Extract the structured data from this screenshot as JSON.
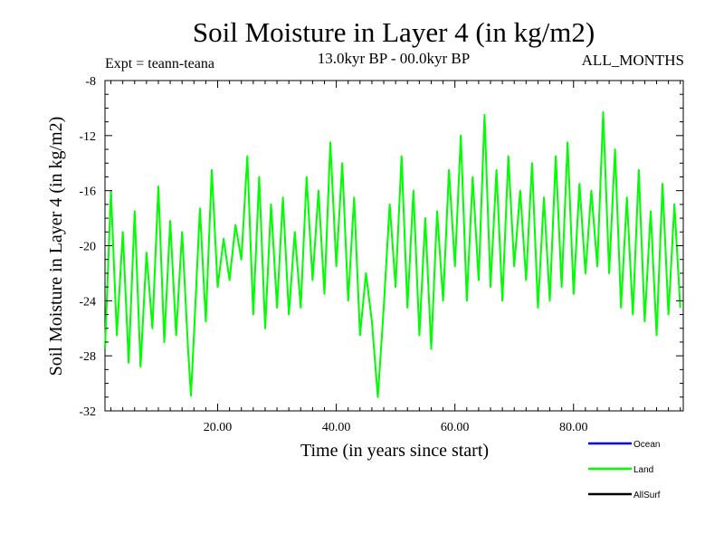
{
  "header": {
    "title": "Soil Moisture in Layer 4 (in kg/m2)",
    "subtitle": "13.0kyr BP - 00.0kyr BP",
    "experiment": "Expt = teann-teana",
    "months": "ALL_MONTHS"
  },
  "chart_data": {
    "type": "line",
    "title": "Soil Moisture in Layer 4 (in kg/m2)",
    "xlabel": "Time (in years since start)",
    "ylabel": "Soil Moisture in Layer 4 (in kg/m2)",
    "xlim": [
      1,
      98.5
    ],
    "ylim": [
      -32,
      -8
    ],
    "xticks": [
      20,
      40,
      60,
      80
    ],
    "xtick_labels": [
      "20.00",
      "40.00",
      "60.00",
      "80.00"
    ],
    "yticks": [
      -8,
      -12,
      -16,
      -20,
      -24,
      -28,
      -32
    ],
    "ytick_labels": [
      "-8",
      "-12",
      "-16",
      "-20",
      "-24",
      "-28",
      "-32"
    ],
    "legend": [
      {
        "name": "Ocean",
        "color": "#0000ff"
      },
      {
        "name": "Land",
        "color": "#00ff00"
      },
      {
        "name": "AllSurf",
        "color": "#000000"
      }
    ],
    "series": [
      {
        "name": "Land",
        "color": "#00ff00",
        "x": [
          1,
          2,
          3,
          4,
          5,
          6,
          7,
          8,
          9,
          10,
          11,
          12,
          13,
          14,
          15,
          15.5,
          16,
          17,
          18,
          19,
          20,
          21,
          22,
          23,
          24,
          25,
          26,
          27,
          28,
          29,
          30,
          31,
          32,
          33,
          34,
          35,
          36,
          37,
          38,
          39,
          40,
          41,
          42,
          43,
          44,
          45,
          46,
          47,
          48,
          49,
          50,
          51,
          52,
          53,
          54,
          55,
          56,
          57,
          58,
          59,
          60,
          61,
          62,
          63,
          64,
          65,
          66,
          67,
          68,
          69,
          70,
          71,
          72,
          73,
          74,
          75,
          76,
          77,
          78,
          79,
          80,
          81,
          82,
          83,
          84,
          85,
          86,
          87,
          88,
          89,
          90,
          91,
          92,
          93,
          94,
          95,
          96,
          97,
          98
        ],
        "values": [
          -27.5,
          -16.0,
          -26.5,
          -19.0,
          -28.5,
          -17.5,
          -28.8,
          -20.5,
          -26.0,
          -15.7,
          -27.0,
          -18.2,
          -26.5,
          -19.0,
          -27.5,
          -30.9,
          -26.5,
          -17.3,
          -25.5,
          -14.5,
          -23.0,
          -19.5,
          -22.5,
          -18.5,
          -21.0,
          -13.5,
          -25.0,
          -15.0,
          -26.0,
          -17.0,
          -24.5,
          -16.5,
          -25.0,
          -19.0,
          -24.5,
          -15.0,
          -22.5,
          -16.0,
          -23.5,
          -12.5,
          -21.5,
          -14.0,
          -24.0,
          -16.5,
          -26.5,
          -22.0,
          -25.5,
          -31.0,
          -24.5,
          -17.0,
          -23.0,
          -13.5,
          -24.5,
          -16.0,
          -26.5,
          -18.0,
          -27.5,
          -17.5,
          -24.0,
          -14.5,
          -21.5,
          -12.0,
          -24.0,
          -15.0,
          -22.5,
          -10.5,
          -23.0,
          -14.5,
          -24.0,
          -13.5,
          -21.5,
          -16.0,
          -22.5,
          -14.0,
          -24.5,
          -16.5,
          -24.0,
          -13.5,
          -23.0,
          -12.5,
          -23.5,
          -15.5,
          -22.0,
          -16.0,
          -21.5,
          -10.3,
          -22.0,
          -13.0,
          -24.5,
          -16.5,
          -25.0,
          -14.5,
          -25.5,
          -17.5,
          -26.5,
          -15.5,
          -25.0,
          -17.0,
          -24.5
        ]
      },
      {
        "name": "AllSurf",
        "color": "#000000",
        "x": [
          1,
          2,
          3,
          4,
          5,
          6,
          7,
          8,
          9,
          10,
          11,
          12,
          13,
          14,
          15,
          15.5,
          16,
          17,
          18,
          19,
          20,
          21,
          22,
          23,
          24,
          25,
          26,
          27,
          28,
          29,
          30,
          31,
          32,
          33,
          34,
          35,
          36,
          37,
          38,
          39,
          40,
          41,
          42,
          43,
          44,
          45,
          46,
          47,
          48,
          49,
          50,
          51,
          52,
          53,
          54,
          55,
          56,
          57,
          58,
          59,
          60,
          61,
          62,
          63,
          64,
          65,
          66,
          67,
          68,
          69,
          70,
          71,
          72,
          73,
          74,
          75,
          76,
          77,
          78,
          79,
          80,
          81,
          82,
          83,
          84,
          85,
          86,
          87,
          88,
          89,
          90,
          91,
          92,
          93,
          94,
          95,
          96,
          97,
          98
        ],
        "values": [
          -27.5,
          -16.0,
          -26.5,
          -19.0,
          -28.5,
          -17.5,
          -28.8,
          -20.5,
          -26.0,
          -15.7,
          -27.0,
          -18.2,
          -26.5,
          -19.0,
          -27.5,
          -30.9,
          -26.5,
          -17.3,
          -25.5,
          -14.5,
          -23.0,
          -19.5,
          -22.5,
          -18.5,
          -21.0,
          -13.5,
          -25.0,
          -15.0,
          -26.0,
          -17.0,
          -24.5,
          -16.5,
          -25.0,
          -19.0,
          -24.5,
          -15.0,
          -22.5,
          -16.0,
          -23.5,
          -12.5,
          -21.5,
          -14.0,
          -24.0,
          -16.5,
          -26.5,
          -22.0,
          -25.5,
          -31.0,
          -24.5,
          -17.0,
          -23.0,
          -13.5,
          -24.5,
          -16.0,
          -26.5,
          -18.0,
          -27.5,
          -17.5,
          -24.0,
          -14.5,
          -21.5,
          -12.0,
          -24.0,
          -15.0,
          -22.5,
          -10.5,
          -23.0,
          -14.5,
          -24.0,
          -13.5,
          -21.5,
          -16.0,
          -22.5,
          -14.0,
          -24.5,
          -16.5,
          -24.0,
          -13.5,
          -23.0,
          -12.5,
          -23.5,
          -15.5,
          -22.0,
          -16.0,
          -21.5,
          -10.3,
          -22.0,
          -13.0,
          -24.5,
          -16.5,
          -25.0,
          -14.5,
          -25.5,
          -17.5,
          -26.5,
          -15.5,
          -25.0,
          -17.0,
          -24.5
        ]
      }
    ]
  }
}
